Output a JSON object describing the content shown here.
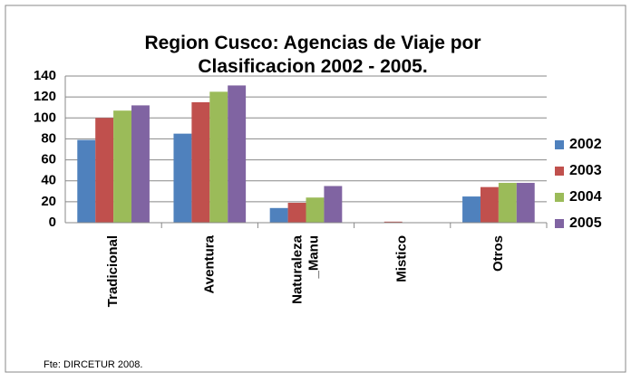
{
  "chart_data": {
    "type": "bar",
    "title": "Region Cusco: Agencias de Viaje por Clasificacion 2002 - 2005.",
    "categories": [
      "Tradicional",
      "Aventura",
      "Naturaleza _Manu",
      "Mistico",
      "Otros"
    ],
    "series": [
      {
        "name": "2002",
        "color": "#4f81bd",
        "values": [
          79,
          85,
          14,
          0,
          25
        ]
      },
      {
        "name": "2003",
        "color": "#c0504d",
        "values": [
          100,
          115,
          19,
          1,
          34
        ]
      },
      {
        "name": "2004",
        "color": "#9bbb59",
        "values": [
          107,
          125,
          24,
          0,
          38
        ]
      },
      {
        "name": "2005",
        "color": "#8064a2",
        "values": [
          112,
          131,
          35,
          0,
          38
        ]
      }
    ],
    "ylim": [
      0,
      140
    ],
    "yticks": [
      0,
      20,
      40,
      60,
      80,
      100,
      120,
      140
    ],
    "grid": true,
    "legend": "right",
    "source": "Fte: DIRCETUR 2008."
  }
}
